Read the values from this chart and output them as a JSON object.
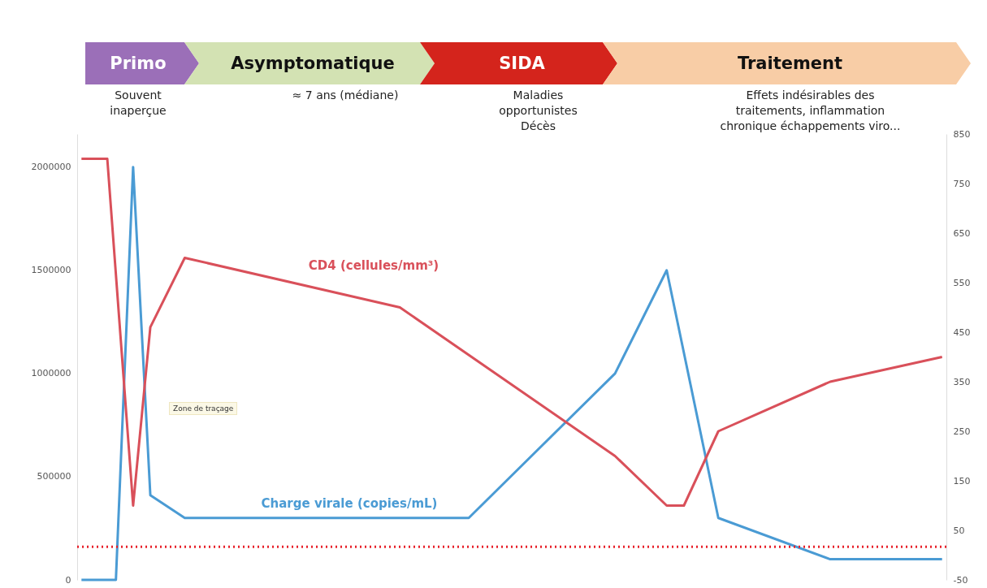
{
  "chart_data": {
    "type": "line",
    "annotations": [
      "Primo",
      "Asymptomatique",
      "SIDA",
      "Traitement",
      "Souvent inaperçue",
      "≈ 7 ans (médiane)",
      "Maladies opportunistes Décès",
      "Effets indésirables des traitements, inflammation chronique échappements viro...",
      "Zone de traçage"
    ],
    "categories": [
      null,
      null,
      null,
      null,
      null,
      null,
      null,
      null,
      null,
      null,
      null,
      null,
      null,
      null,
      null,
      null,
      null,
      null,
      null,
      null,
      null,
      null,
      null,
      null,
      null,
      null,
      null,
      null,
      null,
      null,
      null,
      null,
      null,
      null,
      null,
      null,
      null,
      null,
      null,
      null,
      null,
      null,
      null,
      null,
      null,
      null,
      null,
      null,
      null,
      null,
      null,
      null,
      null,
      null,
      null,
      null,
      null,
      null,
      null,
      null,
      null,
      null,
      null,
      null,
      null,
      null,
      null,
      null,
      null,
      null,
      null,
      null,
      null,
      null,
      null,
      null,
      null,
      null,
      null,
      null,
      null,
      null,
      null,
      null,
      null,
      null,
      null,
      null,
      null,
      null,
      null,
      null,
      null,
      null,
      null,
      null,
      null,
      null,
      null,
      null,
      null
    ],
    "series": [
      {
        "name": "Charge virale (copies/mL)",
        "color": "#4a9bd4",
        "values": [
          0,
          null,
          null,
          null,
          0,
          null,
          2000000,
          null,
          410000,
          null,
          null,
          null,
          300000,
          null,
          null,
          null,
          null,
          null,
          null,
          null,
          null,
          null,
          null,
          null,
          null,
          null,
          null,
          null,
          null,
          null,
          null,
          null,
          null,
          null,
          null,
          null,
          null,
          null,
          null,
          null,
          null,
          null,
          null,
          null,
          null,
          300000,
          null,
          null,
          null,
          null,
          null,
          null,
          null,
          null,
          null,
          null,
          null,
          null,
          null,
          null,
          null,
          null,
          1000000,
          null,
          null,
          null,
          null,
          null,
          1500000,
          null,
          null,
          null,
          null,
          null,
          300000,
          null,
          null,
          null,
          null,
          null,
          null,
          null,
          null,
          null,
          null,
          null,
          null,
          100000,
          null,
          null,
          null,
          null,
          null,
          null,
          null,
          null,
          null,
          null,
          null,
          null,
          100000
        ]
      },
      {
        "name": "CD4 (cellules/mm³)",
        "color": "#d9505a",
        "axis": "y2",
        "values": [
          800,
          null,
          null,
          800,
          null,
          null,
          100,
          null,
          460,
          null,
          null,
          null,
          600,
          null,
          null,
          null,
          null,
          null,
          null,
          null,
          null,
          null,
          null,
          null,
          null,
          null,
          null,
          null,
          null,
          null,
          null,
          null,
          null,
          null,
          null,
          null,
          null,
          500,
          null,
          null,
          null,
          null,
          null,
          null,
          null,
          null,
          null,
          null,
          null,
          null,
          null,
          null,
          null,
          null,
          null,
          null,
          null,
          null,
          null,
          null,
          null,
          null,
          200,
          null,
          null,
          null,
          null,
          null,
          100,
          null,
          100,
          null,
          null,
          null,
          250,
          null,
          null,
          null,
          null,
          null,
          null,
          null,
          null,
          null,
          null,
          null,
          null,
          350,
          null,
          null,
          null,
          null,
          null,
          null,
          null,
          null,
          null,
          null,
          null,
          null,
          400
        ]
      }
    ],
    "ylim": [
      0,
      2160000
    ],
    "yticks": [
      0,
      500000,
      1000000,
      1500000,
      2000000
    ],
    "y2lim": [
      -50,
      850
    ],
    "y2ticks": [
      -50,
      50,
      150,
      250,
      350,
      450,
      550,
      650,
      750,
      850
    ],
    "ref_lines": [
      {
        "axis": "y",
        "value": 160000,
        "color": "#e8202a",
        "line_style": "dotted"
      }
    ],
    "tick_labels": "y",
    "grid": false,
    "line_style": "solid"
  }
}
